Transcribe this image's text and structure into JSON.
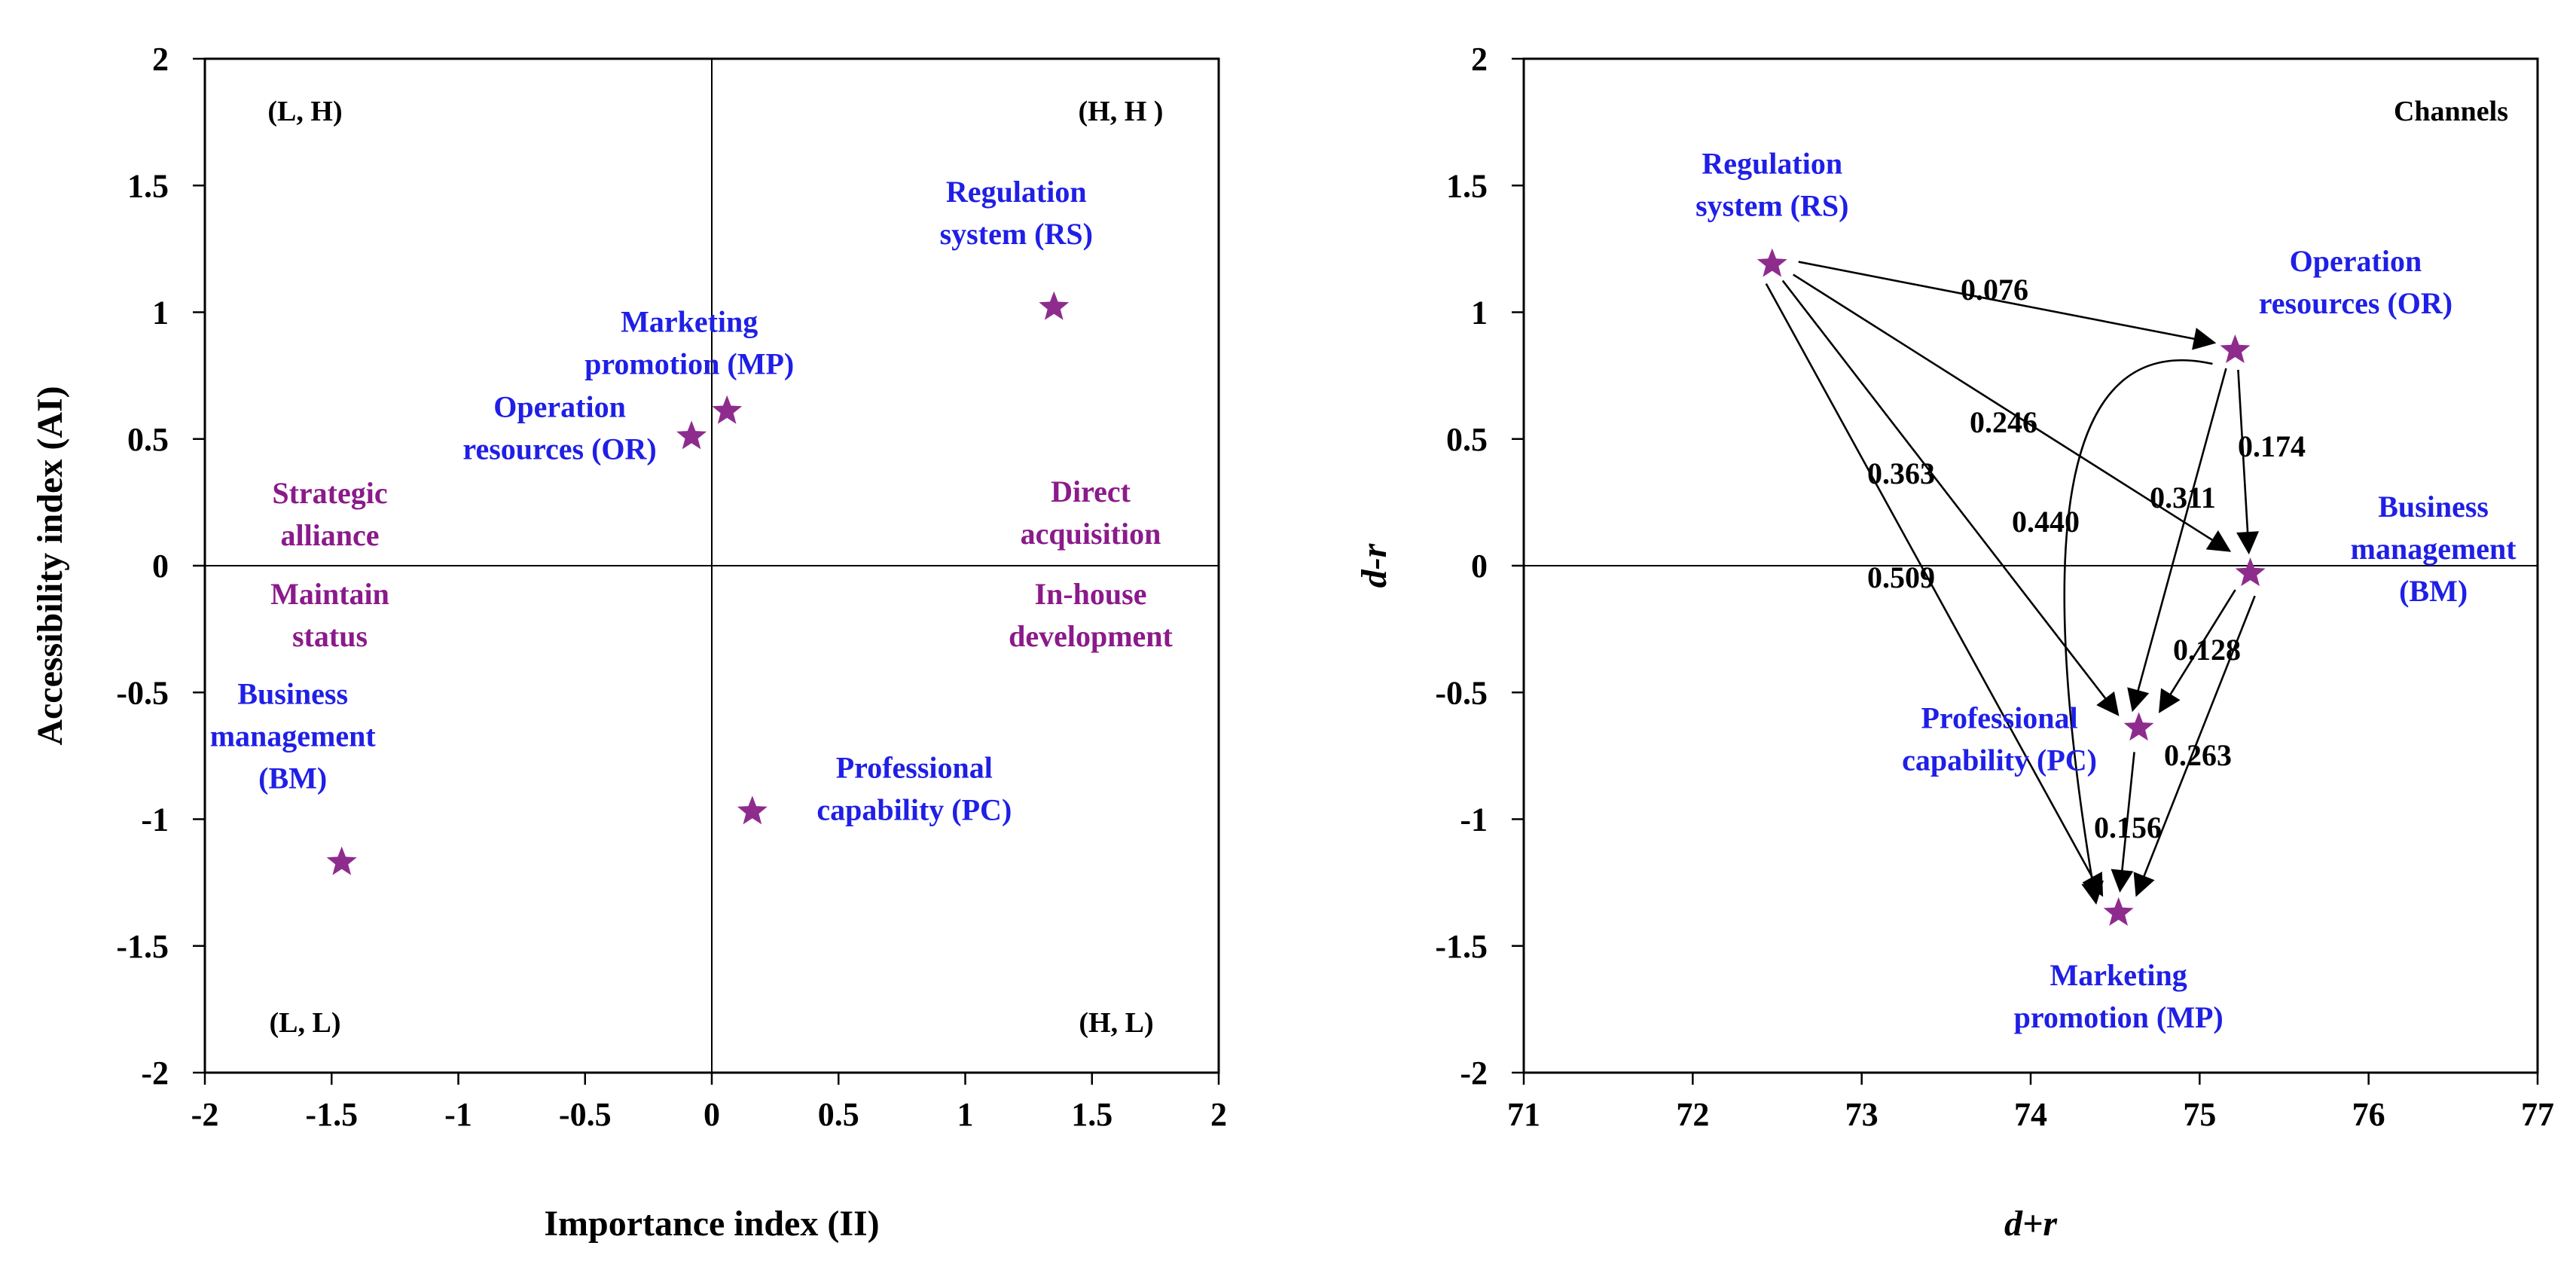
{
  "chart_data": [
    {
      "type": "scatter",
      "xlabel": "Importance index (II)",
      "ylabel": "Accessibility index (AI)",
      "xlim": [
        -2,
        2
      ],
      "ylim": [
        -2,
        2
      ],
      "xticks": [
        "-2",
        "-1.5",
        "-1",
        "-0.5",
        "0",
        "0.5",
        "1",
        "1.5",
        "2"
      ],
      "yticks": [
        "2",
        "1.5",
        "1",
        "0.5",
        "0",
        "-0.5",
        "-1",
        "-1.5",
        "-2"
      ],
      "quadrants": [
        "(L, H)",
        "(H, H )",
        "(L, L)",
        "(H, L)"
      ],
      "strategies": {
        "top_left": [
          "Strategic",
          "alliance"
        ],
        "top_right": [
          "Direct",
          "acquisition"
        ],
        "bottom_left": [
          "Maintain",
          "status"
        ],
        "bottom_right": [
          "In-house",
          "development"
        ]
      },
      "points": [
        {
          "id": "RS",
          "label": [
            "Regulation",
            "system (RS)"
          ],
          "x": 1.35,
          "y": 1.02
        },
        {
          "id": "MP",
          "label": [
            "Marketing",
            "promotion (MP)"
          ],
          "x": 0.06,
          "y": 0.61
        },
        {
          "id": "OR",
          "label": [
            "Operation",
            "resources (OR)"
          ],
          "x": -0.08,
          "y": 0.51
        },
        {
          "id": "BM",
          "label": [
            "Business",
            "management",
            "(BM)"
          ],
          "x": -1.46,
          "y": -1.17
        },
        {
          "id": "PC",
          "label": [
            "Professional",
            "capability (PC)"
          ],
          "x": 0.16,
          "y": -0.97
        }
      ]
    },
    {
      "type": "scatter",
      "title": "Channels",
      "xlabel": "d+r",
      "ylabel": "d-r",
      "xlim": [
        71,
        77
      ],
      "ylim": [
        -2,
        2
      ],
      "xticks": [
        "71",
        "72",
        "73",
        "74",
        "75",
        "76",
        "77"
      ],
      "yticks": [
        "2",
        "1.5",
        "1",
        "0.5",
        "0",
        "-0.5",
        "-1",
        "-1.5",
        "-2"
      ],
      "points": [
        {
          "id": "RS",
          "label": [
            "Regulation",
            "system (RS)"
          ],
          "x": 72.47,
          "y": 1.19
        },
        {
          "id": "OR",
          "label": [
            "Operation",
            "resources (OR)"
          ],
          "x": 75.21,
          "y": 0.85
        },
        {
          "id": "BM",
          "label": [
            "Business",
            "management",
            "(BM)"
          ],
          "x": 75.3,
          "y": -0.03
        },
        {
          "id": "PC",
          "label": [
            "Professional",
            "capability (PC)"
          ],
          "x": 74.64,
          "y": -0.64
        },
        {
          "id": "MP",
          "label": [
            "Marketing",
            "promotion (MP)"
          ],
          "x": 74.52,
          "y": -1.37
        }
      ],
      "arrows": [
        {
          "from": "RS",
          "to": "OR",
          "weight": "0.076"
        },
        {
          "from": "RS",
          "to": "BM",
          "weight": "0.246"
        },
        {
          "from": "RS",
          "to": "PC",
          "weight": "0.363"
        },
        {
          "from": "RS",
          "to": "MP",
          "weight": "0.509"
        },
        {
          "from": "OR",
          "to": "BM",
          "weight": "0.174"
        },
        {
          "from": "OR",
          "to": "PC",
          "weight": "0.311"
        },
        {
          "from": "OR",
          "to": "MP",
          "weight": "0.440"
        },
        {
          "from": "BM",
          "to": "PC",
          "weight": "0.128"
        },
        {
          "from": "BM",
          "to": "MP",
          "weight": "0.263"
        },
        {
          "from": "PC",
          "to": "MP",
          "weight": "0.156"
        }
      ]
    }
  ]
}
